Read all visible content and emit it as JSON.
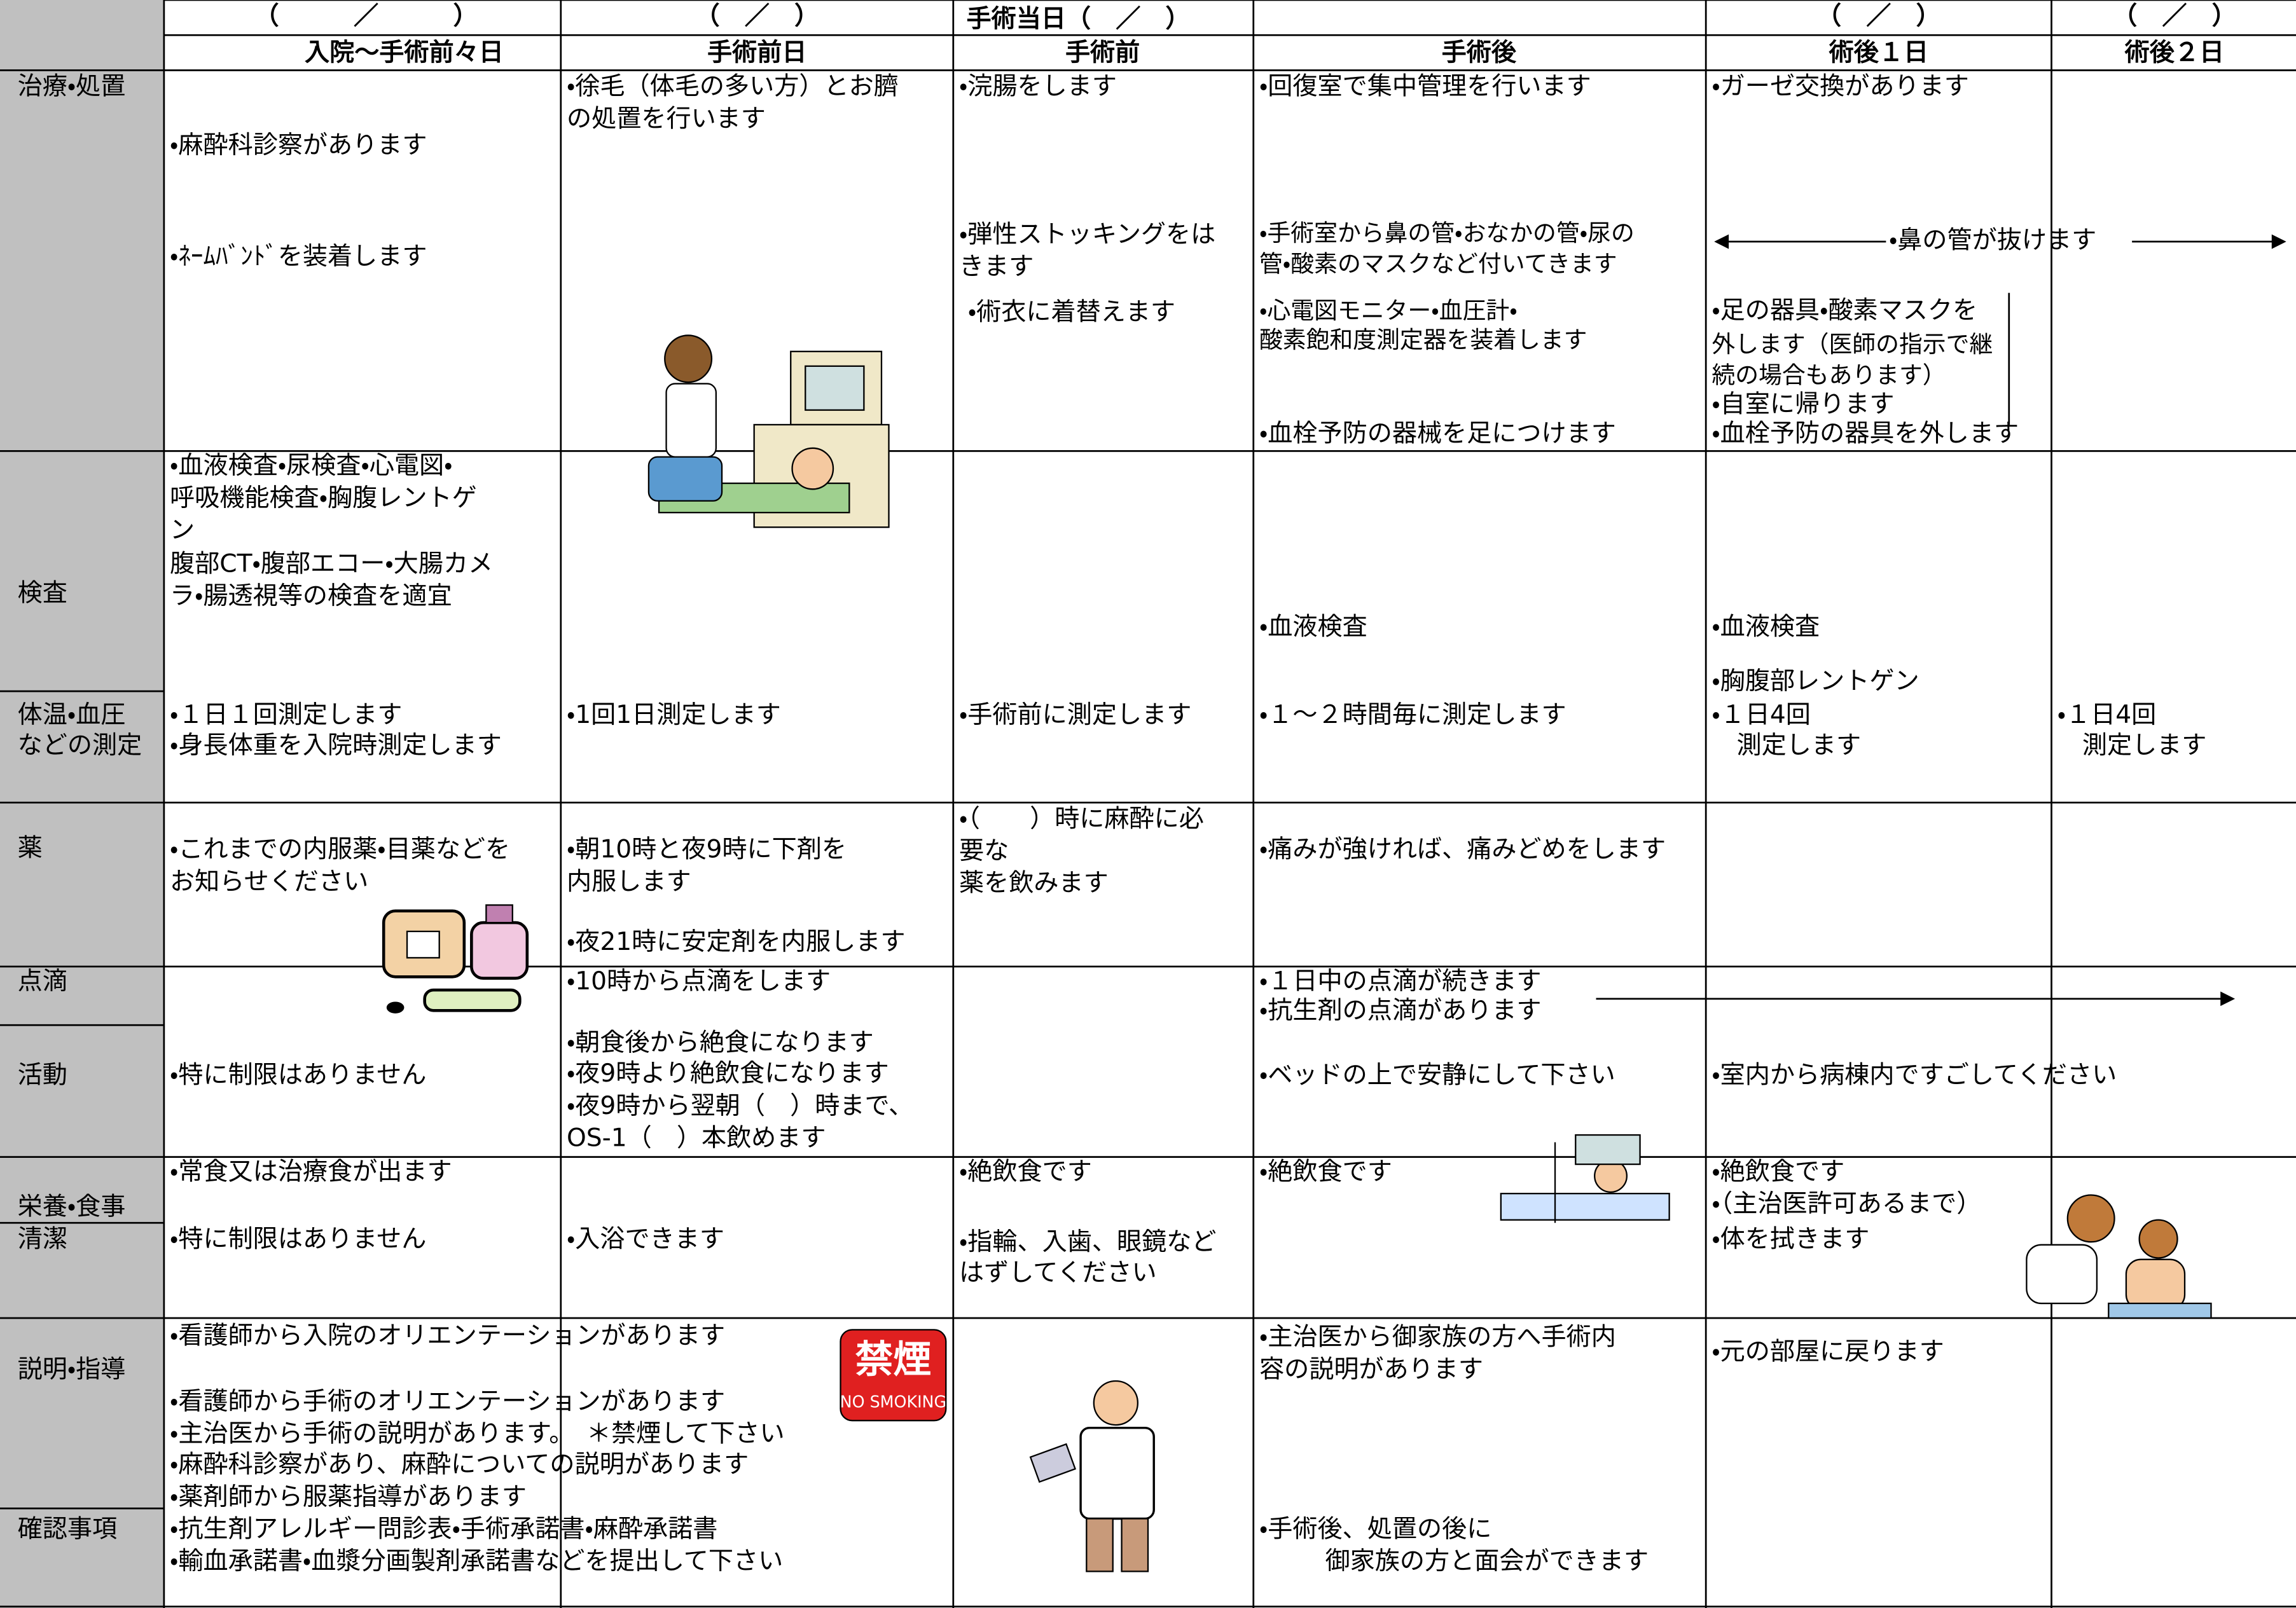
{
  "header": {
    "dates": [
      "（　　　／　　　）",
      "（　／　）",
      "（　／　）",
      "（　／　）"
    ],
    "surgery_day": "手術当日（　／　）",
    "columns": [
      "入院～手術前々日",
      "手術前日",
      "手術前",
      "手術後",
      "術後１日",
      "術後２日"
    ]
  },
  "row_labels": [
    "治療・処置",
    "検査",
    "体温・血圧",
    "などの測定",
    "薬",
    "点滴",
    "活動",
    "栄養・食事",
    "清潔",
    "説明・指導",
    "確認事項"
  ],
  "cells": [
    "・麻酔科診察があります",
    "・ﾈｰﾑﾊﾞﾝﾄﾞを装着します",
    "・血液検査・尿検査・心電図・",
    "呼吸機能検査・胸腹レントゲ",
    "ン",
    "腹部CT・腹部エコー・大腸カメ",
    "ラ・腸透視等の検査を適宜",
    "・１日１回測定します",
    "・身長体重を入院時測定します",
    "・これまでの内服薬・目薬などを",
    "お知らせください",
    "・特に制限はありません",
    "・常食又は治療食が出ます",
    "・特に制限はありません",
    "・看護師から入院のオリエンテーションがあります",
    "・看護師から手術のオリエンテーションがあります",
    "・主治医から手術の説明があります。　＊禁煙して下さい",
    "・麻酔科診察があり、麻酔についての説明があります",
    "・薬剤師から服薬指導があります",
    "・抗生剤アレルギー問診表・手術承諾書・麻酔承諾書",
    "・輸血承諾書・血漿分画製剤承諾書などを提出して下さい",
    "・徐毛（体毛の多い方）とお臍",
    "の処置を行います",
    "・1回1日測定します",
    "・朝10時と夜9時に下剤を",
    "内服します",
    "・夜21時に安定剤を内服します",
    "・10時から点滴をします",
    "・朝食後から絶食になります",
    "・夜9時より絶飲食になります",
    "・夜9時から翌朝（　）時まで、",
    "OS-1（　）本飲めます",
    "・入浴できます",
    "・浣腸をします",
    "・弾性ストッキングをは",
    "きます",
    "・術衣に着替えます",
    "・手術前に測定します",
    "・（　　）時に麻酔に必",
    "要な",
    "薬を飲みます",
    "・絶飲食です",
    "・指輪、入歯、眼鏡など",
    "はずしてください",
    "・回復室で集中管理を行います",
    "・手術室から鼻の管・おなかの管・尿の",
    "管・酸素のマスクなど付いてきます",
    "・心電図モニター・血圧計・",
    "酸素飽和度測定器を装着します",
    "・血栓予防の器械を足につけます",
    "・血液検査",
    "・１～２時間毎に測定します",
    "・痛みが強ければ、痛みどめをします",
    "・１日中の点滴が続きます",
    "・抗生剤の点滴があります",
    "・ベッドの上で安静にして下さい",
    "・絶飲食です",
    "・主治医から御家族の方へ手術内",
    "容の説明があります",
    "・手術後、処置の後に",
    "御家族の方と面会ができます",
    "・ガーゼ交換があります",
    "・鼻の管が抜けます",
    "・足の器具・酸素マスクを",
    "外します（医師の指示で継",
    "続の場合もあります）",
    "・自室に帰ります",
    "・血栓予防の器具を外します",
    "・血液検査",
    "・胸腹部レントゲン",
    "・１日4回",
    "　測定します",
    "・室内から病棟内ですごしてください",
    "・絶飲食です",
    "・（主治医許可あるまで）",
    "・体を拭きます",
    "・元の部屋に戻ります",
    "・１日4回",
    "　測定します"
  ],
  "sign": {
    "title": "禁煙",
    "subtitle": "NO SMOKING"
  }
}
